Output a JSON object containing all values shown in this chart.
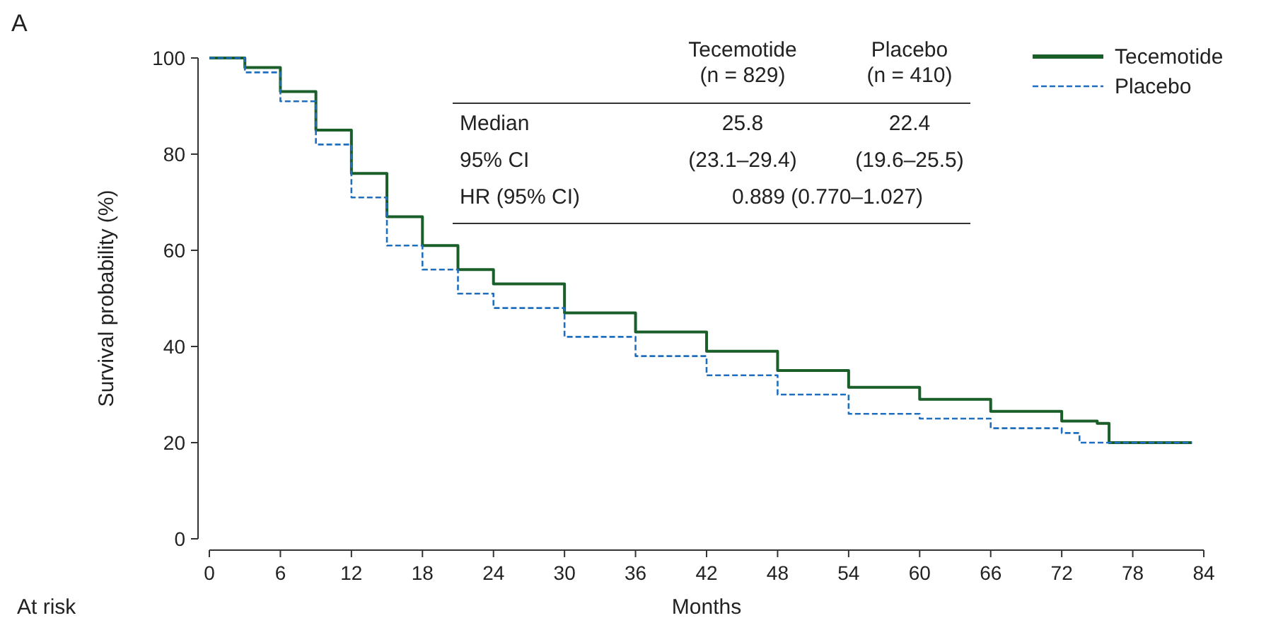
{
  "chart_data": {
    "type": "step",
    "xlabel": "Months",
    "ylabel": "Survival probability (%)",
    "xlim": [
      0,
      84
    ],
    "xticks": [
      0,
      6,
      12,
      18,
      24,
      30,
      36,
      42,
      48,
      54,
      60,
      66,
      72,
      78,
      84
    ],
    "ylim": [
      0,
      100
    ],
    "yticks": [
      0,
      20,
      40,
      60,
      80,
      100
    ],
    "legend": "top right",
    "grid": false,
    "series": [
      {
        "name": "Tecemotide",
        "color": "#1a5e2a",
        "line_style": "solid",
        "x": [
          0,
          3,
          6,
          9,
          12,
          15,
          18,
          21,
          24,
          30,
          36,
          42,
          48,
          54,
          60,
          66,
          72,
          75,
          76,
          83
        ],
        "values": [
          100,
          98,
          93,
          85,
          76,
          67,
          61,
          56,
          53,
          47,
          43,
          39,
          35,
          31.5,
          29,
          26.5,
          24.5,
          24,
          20,
          20
        ]
      },
      {
        "name": "Placebo",
        "color": "#1f6fc0",
        "line_style": "dashed",
        "x": [
          0,
          3,
          6,
          9,
          12,
          15,
          18,
          21,
          24,
          30,
          36,
          42,
          48,
          54,
          60,
          66,
          72,
          73.5,
          78,
          83
        ],
        "values": [
          100,
          97,
          91,
          82,
          71,
          61,
          56,
          51,
          48,
          42,
          38,
          34,
          30,
          26,
          25,
          23,
          22,
          20,
          20,
          20
        ]
      }
    ],
    "annotations": [
      "A",
      "Tecemotide",
      "(n = 829)",
      "Placebo",
      "(n = 410)",
      "Median",
      "25.8",
      "22.4",
      "95% CI",
      "(23.1–29.4)",
      "(19.6–25.5)",
      "HR (95% CI)",
      "0.889 (0.770–1.027)",
      "At risk"
    ]
  }
}
